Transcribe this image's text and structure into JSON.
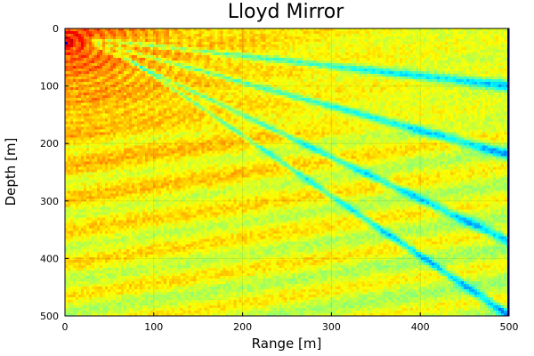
{
  "chart_data": {
    "type": "heatmap",
    "title": "Lloyd Mirror",
    "xlabel": "Range [m]",
    "ylabel": "Depth [m]",
    "xlim": [
      0,
      500
    ],
    "ylim": [
      500,
      0
    ],
    "xticks": [
      {
        "value": 0,
        "label": "0"
      },
      {
        "value": 100,
        "label": "100"
      },
      {
        "value": 200,
        "label": "200"
      },
      {
        "value": 300,
        "label": "300"
      },
      {
        "value": 400,
        "label": "400"
      },
      {
        "value": 500,
        "label": "500"
      }
    ],
    "yticks": [
      {
        "value": 0,
        "label": "0"
      },
      {
        "value": 100,
        "label": "100"
      },
      {
        "value": 200,
        "label": "200"
      },
      {
        "value": 300,
        "label": "300"
      },
      {
        "value": 400,
        "label": "400"
      },
      {
        "value": 500,
        "label": "500"
      }
    ],
    "colormap": "jet",
    "grid": true,
    "source": {
      "range": 0,
      "depth": 25
    },
    "interference_nulls": [
      {
        "range_start": 30,
        "depth_start": 18,
        "range_end": 500,
        "depth_end": 100
      },
      {
        "range_start": 30,
        "depth_start": 22,
        "range_end": 500,
        "depth_end": 220
      },
      {
        "range_start": 30,
        "depth_start": 26,
        "range_end": 500,
        "depth_end": 370
      },
      {
        "range_start": 60,
        "depth_start": 40,
        "range_end": 500,
        "depth_end": 500
      }
    ]
  }
}
